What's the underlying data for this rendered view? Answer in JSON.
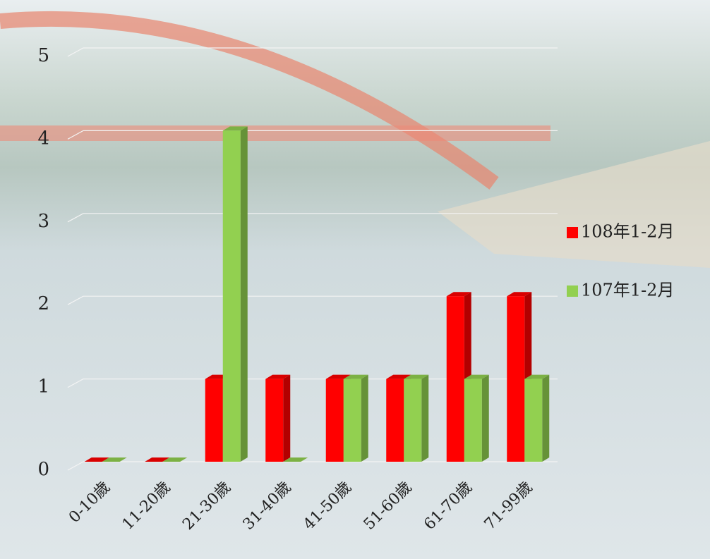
{
  "chart_data": {
    "type": "bar3d",
    "categories": [
      "0-10歲",
      "11-20歲",
      "21-30歲",
      "31-40歲",
      "41-50歲",
      "51-60歲",
      "61-70歲",
      "71-99歲"
    ],
    "series": [
      {
        "name": "108年1-2月",
        "color": "#ff0000",
        "values": [
          0,
          0,
          1,
          1,
          1,
          1,
          2,
          2
        ]
      },
      {
        "name": "107年1-2月",
        "color": "#92d050",
        "values": [
          0,
          0,
          4,
          0,
          1,
          1,
          1,
          1
        ]
      }
    ],
    "ylim": [
      0,
      5
    ],
    "yticks": [
      0,
      1,
      2,
      3,
      4,
      5
    ],
    "grid": true,
    "legend": "right"
  }
}
